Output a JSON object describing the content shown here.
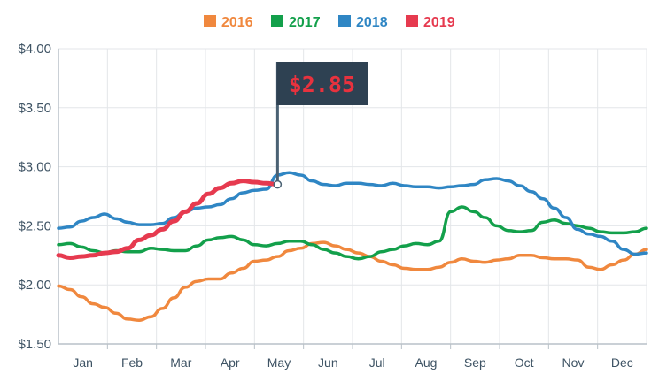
{
  "chart_data": {
    "type": "line",
    "title": "",
    "xlabel": "",
    "ylabel": "",
    "categories": [
      "Jan",
      "Feb",
      "Mar",
      "Apr",
      "May",
      "Jun",
      "Jul",
      "Aug",
      "Sep",
      "Oct",
      "Nov",
      "Dec"
    ],
    "y_ticks": [
      "$1.50",
      "$2.00",
      "$2.50",
      "$3.00",
      "$3.50",
      "$4.00"
    ],
    "ylim": [
      1.5,
      4.0
    ],
    "xlim": [
      1,
      52
    ],
    "x_unit": "week of year",
    "grid": true,
    "legend_position": "top-center",
    "series": [
      {
        "name": "2016",
        "color": "#f0883e",
        "x": [
          1,
          2,
          3,
          4,
          5,
          6,
          7,
          8,
          9,
          10,
          11,
          12,
          13,
          14,
          15,
          16,
          17,
          18,
          19,
          20,
          21,
          22,
          23,
          24,
          25,
          26,
          27,
          28,
          29,
          30,
          31,
          32,
          33,
          34,
          35,
          36,
          37,
          38,
          39,
          40,
          41,
          42,
          43,
          44,
          45,
          46,
          47,
          48,
          49,
          50,
          51,
          52
        ],
        "values": [
          1.99,
          1.96,
          1.9,
          1.84,
          1.81,
          1.76,
          1.71,
          1.7,
          1.73,
          1.8,
          1.89,
          1.98,
          2.03,
          2.05,
          2.05,
          2.1,
          2.14,
          2.2,
          2.21,
          2.24,
          2.29,
          2.31,
          2.35,
          2.36,
          2.33,
          2.3,
          2.27,
          2.24,
          2.2,
          2.17,
          2.14,
          2.13,
          2.13,
          2.15,
          2.19,
          2.22,
          2.2,
          2.19,
          2.21,
          2.22,
          2.25,
          2.25,
          2.23,
          2.22,
          2.22,
          2.21,
          2.15,
          2.13,
          2.17,
          2.21,
          2.26,
          2.3
        ]
      },
      {
        "name": "2017",
        "color": "#13a04b",
        "x": [
          1,
          2,
          3,
          4,
          5,
          6,
          7,
          8,
          9,
          10,
          11,
          12,
          13,
          14,
          15,
          16,
          17,
          18,
          19,
          20,
          21,
          22,
          23,
          24,
          25,
          26,
          27,
          28,
          29,
          30,
          31,
          32,
          33,
          34,
          35,
          36,
          37,
          38,
          39,
          40,
          41,
          42,
          43,
          44,
          45,
          46,
          47,
          48,
          49,
          50,
          51,
          52
        ],
        "values": [
          2.34,
          2.35,
          2.32,
          2.29,
          2.27,
          2.29,
          2.28,
          2.28,
          2.31,
          2.3,
          2.29,
          2.29,
          2.33,
          2.38,
          2.4,
          2.41,
          2.38,
          2.34,
          2.33,
          2.35,
          2.37,
          2.37,
          2.34,
          2.3,
          2.27,
          2.24,
          2.22,
          2.24,
          2.28,
          2.3,
          2.33,
          2.35,
          2.34,
          2.37,
          2.62,
          2.66,
          2.62,
          2.57,
          2.5,
          2.46,
          2.45,
          2.46,
          2.53,
          2.55,
          2.52,
          2.5,
          2.48,
          2.45,
          2.44,
          2.44,
          2.45,
          2.48
        ]
      },
      {
        "name": "2018",
        "color": "#2f86c4",
        "x": [
          1,
          2,
          3,
          4,
          5,
          6,
          7,
          8,
          9,
          10,
          11,
          12,
          13,
          14,
          15,
          16,
          17,
          18,
          19,
          20,
          21,
          22,
          23,
          24,
          25,
          26,
          27,
          28,
          29,
          30,
          31,
          32,
          33,
          34,
          35,
          36,
          37,
          38,
          39,
          40,
          41,
          42,
          43,
          44,
          45,
          46,
          47,
          48,
          49,
          50,
          51,
          52
        ],
        "values": [
          2.48,
          2.49,
          2.54,
          2.57,
          2.6,
          2.56,
          2.53,
          2.51,
          2.51,
          2.52,
          2.57,
          2.62,
          2.65,
          2.66,
          2.68,
          2.73,
          2.78,
          2.8,
          2.81,
          2.93,
          2.95,
          2.93,
          2.88,
          2.85,
          2.84,
          2.86,
          2.86,
          2.85,
          2.84,
          2.86,
          2.84,
          2.83,
          2.83,
          2.82,
          2.83,
          2.84,
          2.85,
          2.89,
          2.9,
          2.88,
          2.84,
          2.79,
          2.73,
          2.65,
          2.57,
          2.47,
          2.43,
          2.41,
          2.37,
          2.3,
          2.26,
          2.27
        ]
      },
      {
        "name": "2019",
        "color": "#e63a4f",
        "x": [
          1,
          2,
          3,
          4,
          5,
          6,
          7,
          8,
          9,
          10,
          11,
          12,
          13,
          14,
          15,
          16,
          17,
          18,
          19,
          20
        ],
        "values": [
          2.25,
          2.23,
          2.24,
          2.25,
          2.27,
          2.28,
          2.31,
          2.38,
          2.42,
          2.47,
          2.54,
          2.62,
          2.69,
          2.77,
          2.82,
          2.86,
          2.88,
          2.87,
          2.86,
          2.85
        ]
      }
    ],
    "annotation": {
      "label": "$2.85",
      "series": "2019",
      "x": 20,
      "value": 2.85
    }
  }
}
